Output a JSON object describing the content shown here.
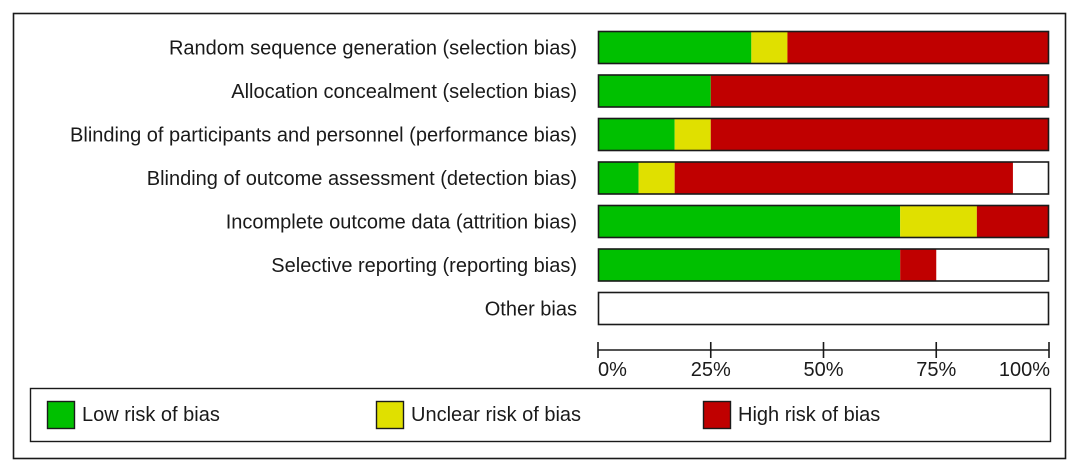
{
  "chart_data": {
    "type": "bar",
    "orientation": "horizontal",
    "stacked": true,
    "categories": [
      "Random sequence generation (selection bias)",
      "Allocation concealment (selection bias)",
      "Blinding of participants and personnel (performance bias)",
      "Blinding of outcome assessment (detection bias)",
      "Incomplete outcome data (attrition bias)",
      "Selective reporting (reporting bias)",
      "Other bias"
    ],
    "series": [
      {
        "name": "Low risk of bias",
        "color": "#00c000",
        "values": [
          34,
          25,
          17,
          9,
          67,
          67,
          0
        ]
      },
      {
        "name": "Unclear risk of bias",
        "color": "#e0e000",
        "values": [
          8,
          0,
          8,
          8,
          17,
          0,
          0
        ]
      },
      {
        "name": "High risk of bias",
        "color": "#c00000",
        "values": [
          58,
          75,
          75,
          75,
          16,
          8,
          0
        ]
      }
    ],
    "x_ticks": [
      "0%",
      "25%",
      "50%",
      "75%",
      "100%"
    ],
    "x_tick_values": [
      0,
      25,
      50,
      75,
      100
    ],
    "xlim": [
      0,
      100
    ],
    "unit": "%",
    "legend_position": "bottom",
    "grid": false
  }
}
